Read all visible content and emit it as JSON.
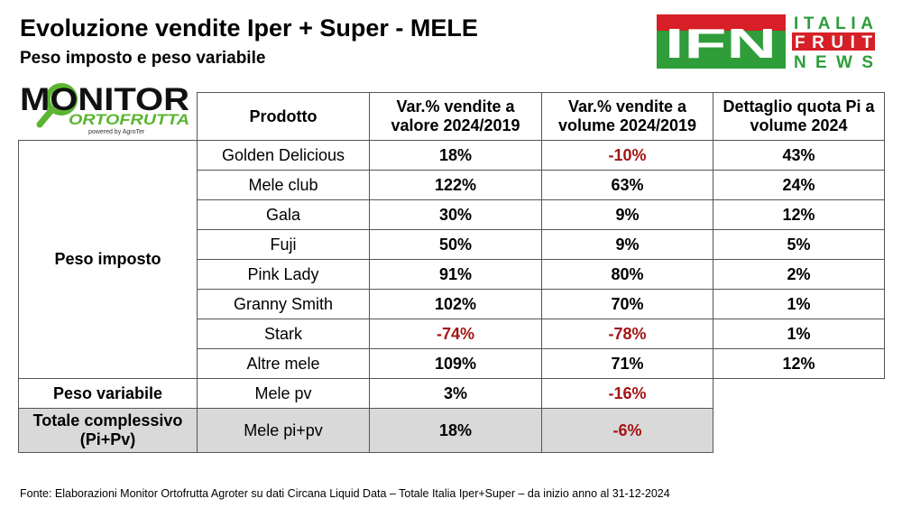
{
  "header": {
    "title": "Evoluzione vendite Iper + Super - MELE",
    "subtitle": "Peso imposto e peso variabile"
  },
  "logos": {
    "monitor": {
      "main": "MONITOR",
      "sub": "ORTOFRUTTA",
      "powered": "powered by AgroTer"
    },
    "ifn": {
      "mark": "IFN",
      "line1": "ITALIA",
      "line2": "FRUIT",
      "line3": "NEWS"
    }
  },
  "table": {
    "columns": [
      "Prodotto",
      "Var.% vendite a valore 2024/2019",
      "Var.% vendite a volume 2024/2019",
      "Dettaglio quota Pi a volume 2024"
    ],
    "groups": [
      {
        "label": "Peso imposto",
        "rows": [
          [
            "Golden Delicious",
            "18%",
            "-10%",
            "43%"
          ],
          [
            "Mele club",
            "122%",
            "63%",
            "24%"
          ],
          [
            "Gala",
            "30%",
            "9%",
            "12%"
          ],
          [
            "Fuji",
            "50%",
            "9%",
            "5%"
          ],
          [
            "Pink Lady",
            "91%",
            "80%",
            "2%"
          ],
          [
            "Granny Smith",
            "102%",
            "70%",
            "1%"
          ],
          [
            "Stark",
            "-74%",
            "-78%",
            "1%"
          ],
          [
            "Altre mele",
            "109%",
            "71%",
            "12%"
          ]
        ]
      },
      {
        "label": "Peso variabile",
        "rows": [
          [
            "Mele pv",
            "3%",
            "-16%"
          ]
        ]
      },
      {
        "label": "Totale complessivo (Pi+Pv)",
        "rows": [
          [
            "Mele pi+pv",
            "18%",
            "-6%"
          ]
        ]
      }
    ]
  },
  "footer": "Fonte: Elaborazioni Monitor Ortofrutta Agroter su dati Circana Liquid Data – Totale Italia Iper+Super –  da inizio anno al 31-12-2024"
}
